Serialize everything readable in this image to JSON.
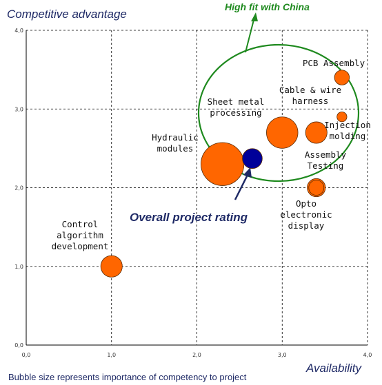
{
  "chart_data": {
    "type": "scatter",
    "ylabel": "Competitive advantage",
    "xlabel": "Availability",
    "xlim": [
      0,
      4
    ],
    "ylim": [
      0,
      4
    ],
    "x_ticks": [
      "0,0",
      "1,0",
      "2,0",
      "3,0",
      "4,0"
    ],
    "y_ticks": [
      "0,0",
      "1,0",
      "2,0",
      "3,0",
      "4,0"
    ],
    "grid": true,
    "bubbles": [
      {
        "label": [
          "Control",
          "algorithm",
          "development"
        ],
        "x": 1.0,
        "y": 1.0,
        "importance": 13,
        "color": "#ff6600"
      },
      {
        "label": [
          "Hydraulic",
          "modules"
        ],
        "x": 2.3,
        "y": 2.3,
        "importance": 26,
        "color": "#ff6600"
      },
      {
        "label": [
          "Sheet metal",
          "processing"
        ],
        "x": 3.0,
        "y": 2.7,
        "importance": 19,
        "color": "#ff6600"
      },
      {
        "label": [
          "Cable & wire",
          "harness"
        ],
        "x": 3.4,
        "y": 2.7,
        "importance": 13,
        "color": "#ff6600"
      },
      {
        "label": [
          "PCB Assembly"
        ],
        "x": 3.7,
        "y": 3.4,
        "importance": 9,
        "color": "#ff6600"
      },
      {
        "label": [
          "Injection",
          "molding"
        ],
        "x": 3.7,
        "y": 2.9,
        "importance": 6,
        "color": "#ff6600"
      },
      {
        "label": [
          "Assembly",
          "Testing"
        ],
        "x": 3.4,
        "y": 2.0,
        "importance": 11,
        "color": "#ff6600"
      },
      {
        "label": [
          "Opto",
          "electronic",
          "display"
        ],
        "x": null,
        "y": null,
        "importance": null,
        "color": null
      },
      {
        "label": [],
        "x": 2.65,
        "y": 2.37,
        "importance": 12,
        "color": "#000099"
      }
    ],
    "annotations": {
      "overall": "Overall project rating",
      "fit": "High fit with China"
    },
    "footnote": "Bubble size represents importance of competency to project",
    "colors": {
      "bubble": "#ff6600",
      "overall": "#000099",
      "fit": "#1f8a1f",
      "text": "#1f2a66"
    }
  }
}
